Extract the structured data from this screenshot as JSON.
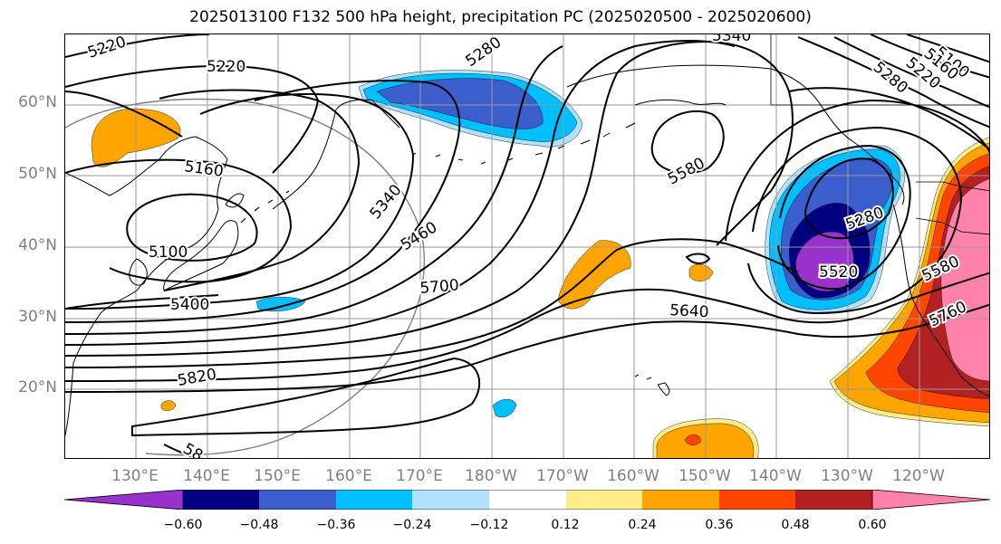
{
  "title": "2025013100 F132 500 hPa height, precipitation PC (2025020500 - 2025020600)",
  "lat_labels": [
    "60°N",
    "50°N",
    "40°N",
    "30°N",
    "20°N"
  ],
  "lon_labels": [
    "130°E",
    "140°E",
    "150°E",
    "160°E",
    "170°E",
    "180°W",
    "170°W",
    "160°W",
    "150°W",
    "140°W",
    "130°W",
    "120°W"
  ],
  "contour_labels": [
    "5220",
    "5220",
    "5280",
    "5340",
    "5100",
    "5280",
    "5220",
    "5160",
    "5160",
    "5100",
    "5340",
    "5460",
    "5580",
    "5280",
    "5520",
    "5580",
    "5700",
    "5400",
    "5640",
    "5760",
    "5820",
    "58"
  ],
  "colorbar": {
    "ticks": [
      "−0.60",
      "−0.48",
      "−0.36",
      "−0.24",
      "−0.12",
      "0.12",
      "0.24",
      "0.36",
      "0.48",
      "0.60"
    ],
    "colors": {
      "lt_neg060": "#9932cc",
      "neg060_neg048": "#000080",
      "neg048_neg036": "#3a5fcd",
      "neg036_neg024": "#00bfff",
      "neg024_neg012": "#b0e2ff",
      "neutral": "#ffffff",
      "pos012_pos024": "#ffec8b",
      "pos024_pos036": "#ffa500",
      "pos036_pos048": "#ff4500",
      "pos048_pos060": "#b22222",
      "gt_pos060": "#ff82ab"
    }
  }
}
